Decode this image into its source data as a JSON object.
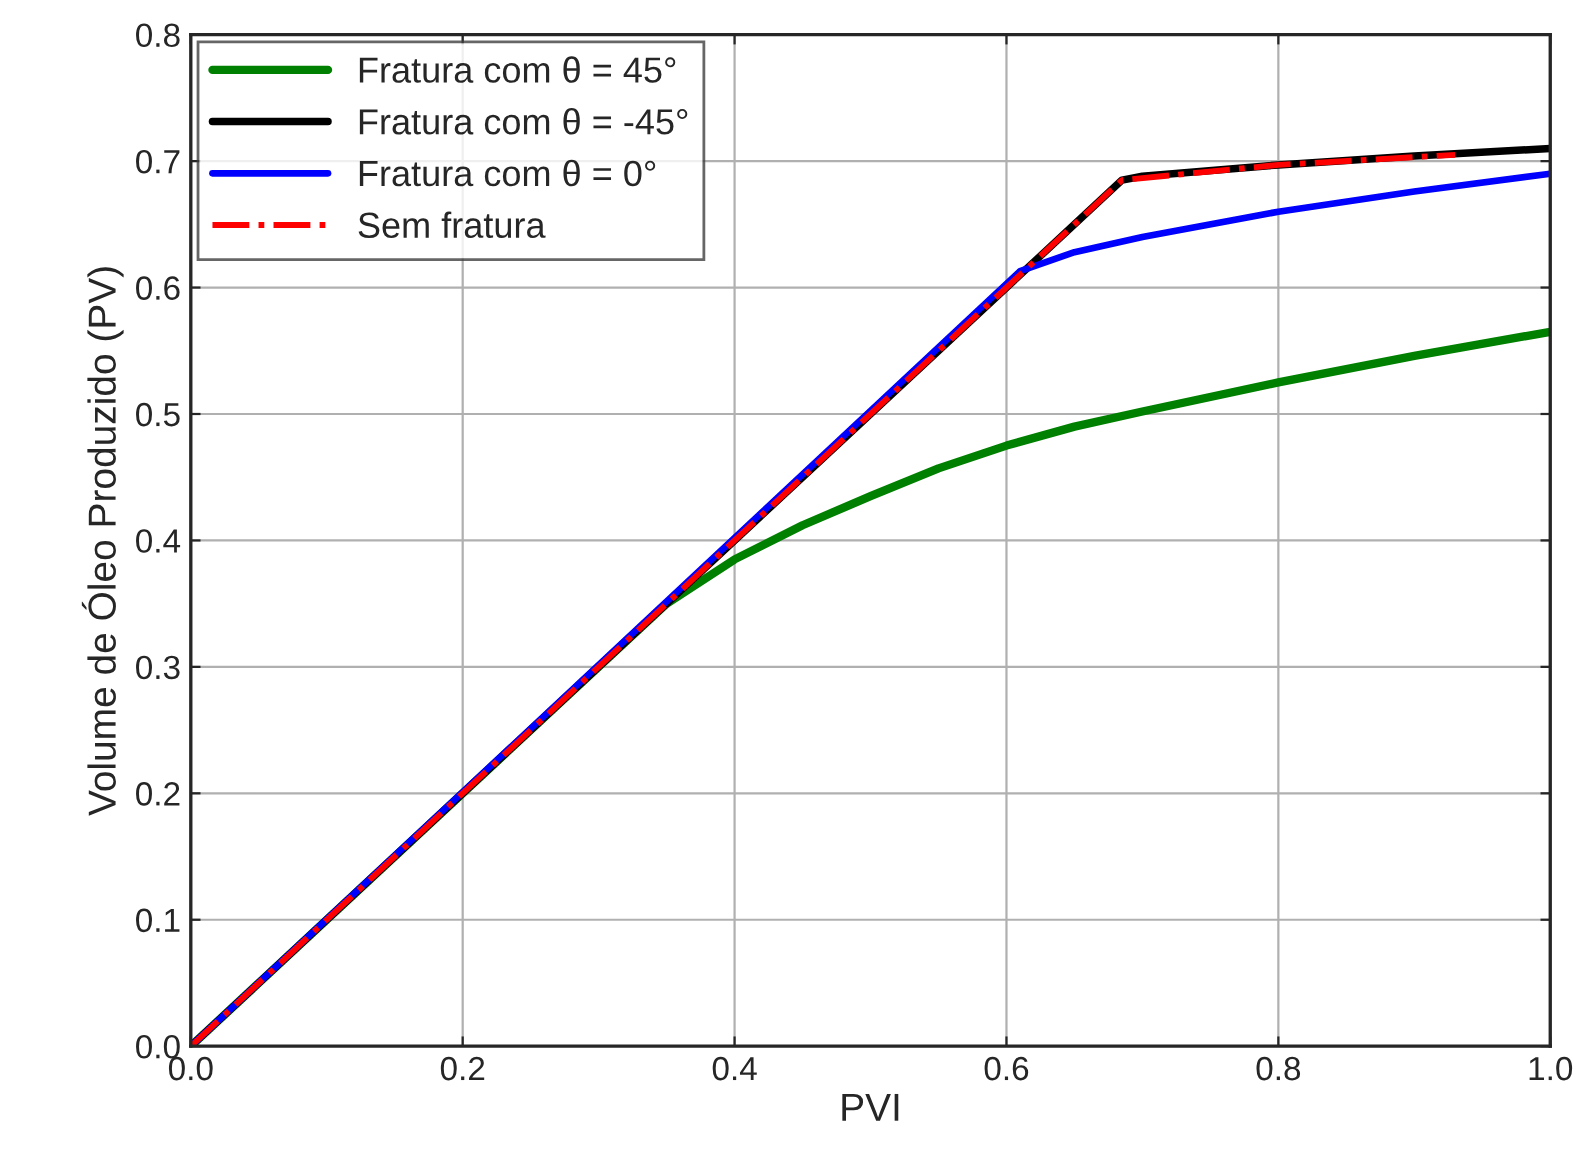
{
  "chart_data": {
    "type": "line",
    "xlabel": "PVI",
    "ylabel": "Volume de Óleo Produzido (PV)",
    "xlim": [
      0.0,
      1.0
    ],
    "ylim": [
      0.0,
      0.8
    ],
    "xticks": [
      {
        "value": 0.0,
        "label": "0.0"
      },
      {
        "value": 0.2,
        "label": "0.2"
      },
      {
        "value": 0.4,
        "label": "0.4"
      },
      {
        "value": 0.6,
        "label": "0.6"
      },
      {
        "value": 0.8,
        "label": "0.8"
      },
      {
        "value": 1.0,
        "label": "1.0"
      }
    ],
    "yticks": [
      {
        "value": 0.0,
        "label": "0.0"
      },
      {
        "value": 0.1,
        "label": "0.1"
      },
      {
        "value": 0.2,
        "label": "0.2"
      },
      {
        "value": 0.3,
        "label": "0.3"
      },
      {
        "value": 0.4,
        "label": "0.4"
      },
      {
        "value": 0.5,
        "label": "0.5"
      },
      {
        "value": 0.6,
        "label": "0.6"
      },
      {
        "value": 0.7,
        "label": "0.7"
      },
      {
        "value": 0.8,
        "label": "0.8"
      }
    ],
    "grid": true,
    "legend": "top left",
    "marker": "none",
    "series": [
      {
        "name": "Fratura com θ = 45°",
        "color": "#008000",
        "x": [
          0.0,
          0.35,
          0.4,
          0.45,
          0.5,
          0.55,
          0.6,
          0.65,
          0.7,
          0.8,
          0.9,
          1.0
        ],
        "values": [
          0.0,
          0.35,
          0.385,
          0.412,
          0.435,
          0.457,
          0.475,
          0.49,
          0.502,
          0.525,
          0.546,
          0.565
        ]
      },
      {
        "name": "Fratura com θ = -45°",
        "color": "#000000",
        "x": [
          0.0,
          0.685,
          0.7,
          0.8,
          0.9,
          1.0
        ],
        "values": [
          0.0,
          0.685,
          0.688,
          0.697,
          0.704,
          0.71
        ]
      },
      {
        "name": "Fratura com θ = 0°",
        "color": "#0000ff",
        "x": [
          0.0,
          0.61,
          0.65,
          0.7,
          0.8,
          0.9,
          1.0
        ],
        "values": [
          0.0,
          0.613,
          0.628,
          0.64,
          0.66,
          0.676,
          0.69
        ]
      },
      {
        "name": "Sem fratura",
        "color": "#ff0000",
        "line_style": "dashdot",
        "x": [
          0.0,
          0.685,
          0.8,
          0.93
        ],
        "values": [
          0.0,
          0.685,
          0.697,
          0.705
        ]
      }
    ]
  }
}
